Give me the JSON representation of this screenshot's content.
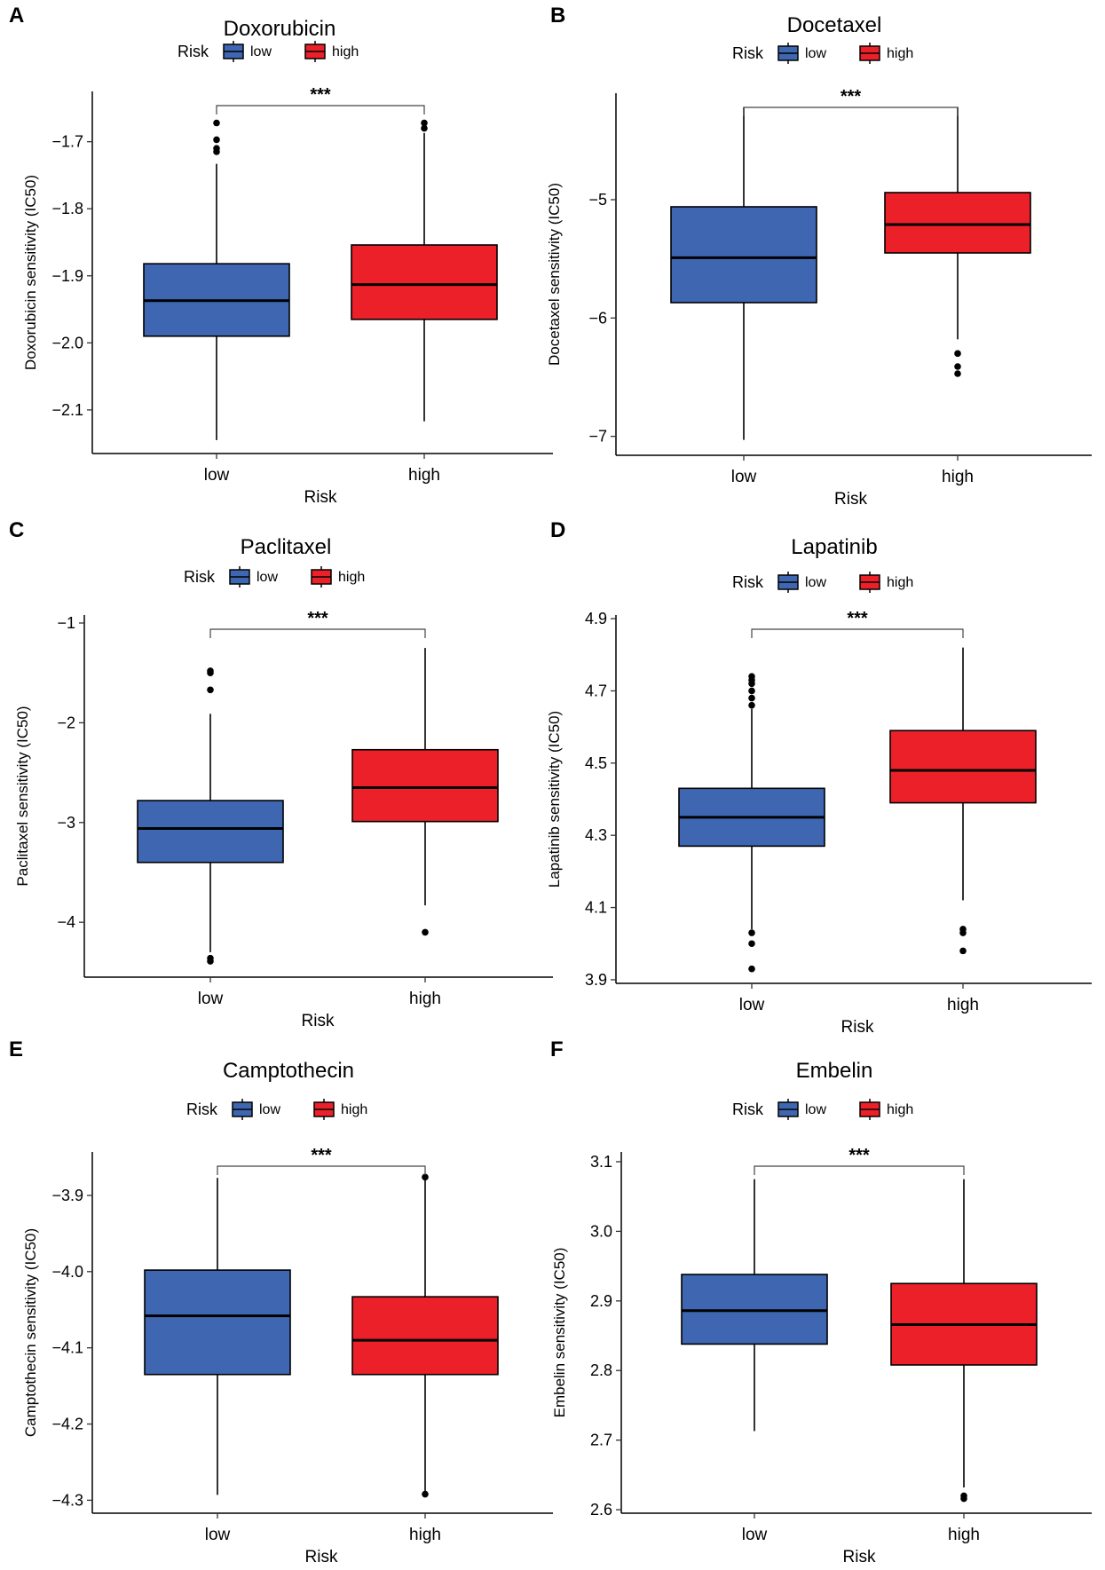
{
  "colors": {
    "low": "#3e66b1",
    "high": "#ec2028",
    "outline": "#000000"
  },
  "chart_data": [
    {
      "type": "box",
      "panel": "A",
      "title": "Doxorubicin",
      "legend_title": "Risk",
      "legend": [
        "low",
        "high"
      ],
      "categories": [
        "low",
        "high"
      ],
      "xlabel": "Risk",
      "ylabel": "Doxorubicin sensitivity (IC50)",
      "ylim": [
        -2.165,
        -1.625
      ],
      "yticks": [
        -1.7,
        -1.8,
        -1.9,
        -2.0,
        -2.1
      ],
      "ytick_labels": [
        "−1.7",
        "−1.8",
        "−1.9",
        "−2.0",
        "−2.1"
      ],
      "significance": "***",
      "boxes": [
        {
          "group": "low",
          "min": -2.145,
          "q1": -1.99,
          "median": -1.937,
          "q3": -1.882,
          "max": -1.733,
          "outliers": [
            -1.672,
            -1.697,
            -1.71,
            -1.715
          ]
        },
        {
          "group": "high",
          "min": -2.117,
          "q1": -1.965,
          "median": -1.913,
          "q3": -1.854,
          "max": -1.687,
          "outliers": [
            -1.672,
            -1.68
          ]
        }
      ]
    },
    {
      "type": "box",
      "panel": "B",
      "title": "Docetaxel",
      "legend_title": "Risk",
      "legend": [
        "low",
        "high"
      ],
      "categories": [
        "low",
        "high"
      ],
      "xlabel": "Risk",
      "ylabel": "Docetaxel sensitivity (IC50)",
      "ylim": [
        -7.16,
        -4.1
      ],
      "yticks": [
        -5,
        -6,
        -7
      ],
      "ytick_labels": [
        "−5",
        "−6",
        "−7"
      ],
      "significance": "***",
      "boxes": [
        {
          "group": "low",
          "min": -7.03,
          "q1": -5.87,
          "median": -5.49,
          "q3": -5.06,
          "max": -4.22,
          "outliers": []
        },
        {
          "group": "high",
          "min": -6.18,
          "q1": -5.45,
          "median": -5.21,
          "q3": -4.94,
          "max": -4.22,
          "outliers": [
            -6.3,
            -6.41,
            -6.47
          ]
        }
      ]
    },
    {
      "type": "box",
      "panel": "C",
      "title": "Paclitaxel",
      "legend_title": "Risk",
      "legend": [
        "low",
        "high"
      ],
      "categories": [
        "low",
        "high"
      ],
      "xlabel": "Risk",
      "ylabel": "Paclitaxel sensitivity (IC50)",
      "ylim": [
        -4.55,
        -0.92
      ],
      "yticks": [
        -1,
        -2,
        -3,
        -4
      ],
      "ytick_labels": [
        "−1",
        "−2",
        "−3",
        "−4"
      ],
      "significance": "***",
      "boxes": [
        {
          "group": "low",
          "min": -4.3,
          "q1": -3.4,
          "median": -3.06,
          "q3": -2.78,
          "max": -1.91,
          "outliers": [
            -1.48,
            -1.5,
            -1.67,
            -4.36,
            -4.39
          ]
        },
        {
          "group": "high",
          "min": -3.83,
          "q1": -2.99,
          "median": -2.65,
          "q3": -2.27,
          "max": -1.25,
          "outliers": [
            -4.1
          ]
        }
      ]
    },
    {
      "type": "box",
      "panel": "D",
      "title": "Lapatinib",
      "legend_title": "Risk",
      "legend": [
        "low",
        "high"
      ],
      "categories": [
        "low",
        "high"
      ],
      "xlabel": "Risk",
      "ylabel": "Lapatinib sensitivity (IC50)",
      "ylim": [
        3.89,
        4.91
      ],
      "yticks": [
        3.9,
        4.1,
        4.3,
        4.5,
        4.7,
        4.9
      ],
      "ytick_labels": [
        "3.9",
        "4.1",
        "4.3",
        "4.5",
        "4.7",
        "4.9"
      ],
      "significance": "***",
      "boxes": [
        {
          "group": "low",
          "min": 4.04,
          "q1": 4.27,
          "median": 4.35,
          "q3": 4.43,
          "max": 4.65,
          "outliers": [
            4.66,
            4.68,
            4.7,
            4.72,
            4.73,
            4.74,
            4.03,
            4.0,
            3.93
          ]
        },
        {
          "group": "high",
          "min": 4.12,
          "q1": 4.39,
          "median": 4.48,
          "q3": 4.59,
          "max": 4.82,
          "outliers": [
            4.04,
            4.03,
            3.98
          ]
        }
      ]
    },
    {
      "type": "box",
      "panel": "E",
      "title": "Camptothecin",
      "legend_title": "Risk",
      "legend": [
        "low",
        "high"
      ],
      "categories": [
        "low",
        "high"
      ],
      "xlabel": "Risk",
      "ylabel": "Camptothecin sensitivity (IC50)",
      "ylim": [
        -4.317,
        -3.843
      ],
      "yticks": [
        -3.9,
        -4.0,
        -4.1,
        -4.2,
        -4.3
      ],
      "ytick_labels": [
        "−3.9",
        "−4.0",
        "−4.1",
        "−4.2",
        "−4.3"
      ],
      "significance": "***",
      "boxes": [
        {
          "group": "low",
          "min": -4.293,
          "q1": -4.135,
          "median": -4.058,
          "q3": -3.998,
          "max": -3.877,
          "outliers": []
        },
        {
          "group": "high",
          "min": -4.29,
          "q1": -4.135,
          "median": -4.09,
          "q3": -4.033,
          "max": -3.878,
          "outliers": [
            -3.876,
            -4.292
          ]
        }
      ]
    },
    {
      "type": "box",
      "panel": "F",
      "title": "Embelin",
      "legend_title": "Risk",
      "legend": [
        "low",
        "high"
      ],
      "categories": [
        "low",
        "high"
      ],
      "xlabel": "Risk",
      "ylabel": "Embelin sensitivity (IC50)",
      "ylim": [
        2.595,
        3.114
      ],
      "yticks": [
        2.6,
        2.7,
        2.8,
        2.9,
        3.0,
        3.1
      ],
      "ytick_labels": [
        "2.6",
        "2.7",
        "2.8",
        "2.9",
        "3.0",
        "3.1"
      ],
      "significance": "***",
      "boxes": [
        {
          "group": "low",
          "min": 2.713,
          "q1": 2.838,
          "median": 2.886,
          "q3": 2.938,
          "max": 3.075,
          "outliers": []
        },
        {
          "group": "high",
          "min": 2.632,
          "q1": 2.808,
          "median": 2.866,
          "q3": 2.925,
          "max": 3.075,
          "outliers": [
            2.62,
            2.616
          ]
        }
      ]
    }
  ]
}
